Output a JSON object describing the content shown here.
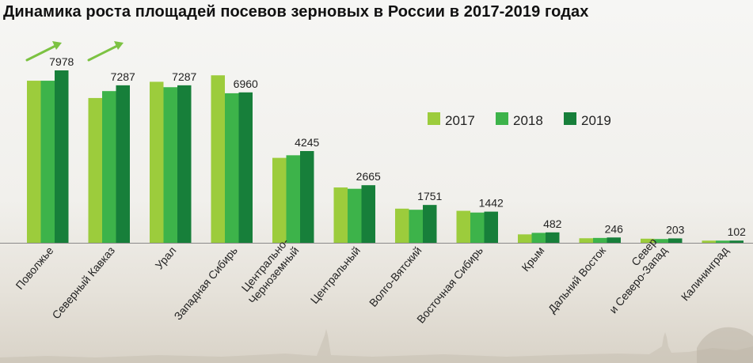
{
  "title": "Динамика роста площадей посевов зерновых в России в 2017-2019 годах",
  "colors": {
    "2017": "#9ccc3c",
    "2018": "#3db34a",
    "2019": "#177f3a",
    "arrow": "#7cc242",
    "text": "#222222"
  },
  "chart_data": {
    "type": "bar",
    "title": "Динамика роста площадей посевов зерновых в России в 2017-2019 годах",
    "categories": [
      "Поволжье",
      "Северный Кавказ",
      "Урал",
      "Западная Сибирь",
      "Центрально-\nЧерноземный",
      "Центральный",
      "Волго-Вятский",
      "Восточная Сибирь",
      "Крым",
      "Дальний Восток",
      "Север\nи Северо-Запад",
      "Калининград"
    ],
    "series": [
      {
        "name": "2017",
        "values": [
          7500,
          6700,
          7450,
          7750,
          3930,
          2560,
          1580,
          1480,
          390,
          210,
          190,
          100
        ]
      },
      {
        "name": "2018",
        "values": [
          7500,
          7020,
          7200,
          6920,
          4050,
          2500,
          1530,
          1400,
          460,
          225,
          175,
          100
        ]
      },
      {
        "name": "2019",
        "values": [
          7978,
          7287,
          7287,
          6960,
          4245,
          2665,
          1751,
          1442,
          482,
          246,
          203,
          102
        ]
      }
    ],
    "data_labels": [
      "7978",
      "7287",
      "7287",
      "6960",
      "4245",
      "2665",
      "1751",
      "1442",
      "482",
      "246",
      "203",
      "102"
    ],
    "ylim": [
      0,
      8000
    ],
    "legend_position": "right, upper-middle",
    "grid": false,
    "annotations": [
      "growth arrow above Поволжье",
      "growth arrow above Северный Кавказ"
    ]
  }
}
